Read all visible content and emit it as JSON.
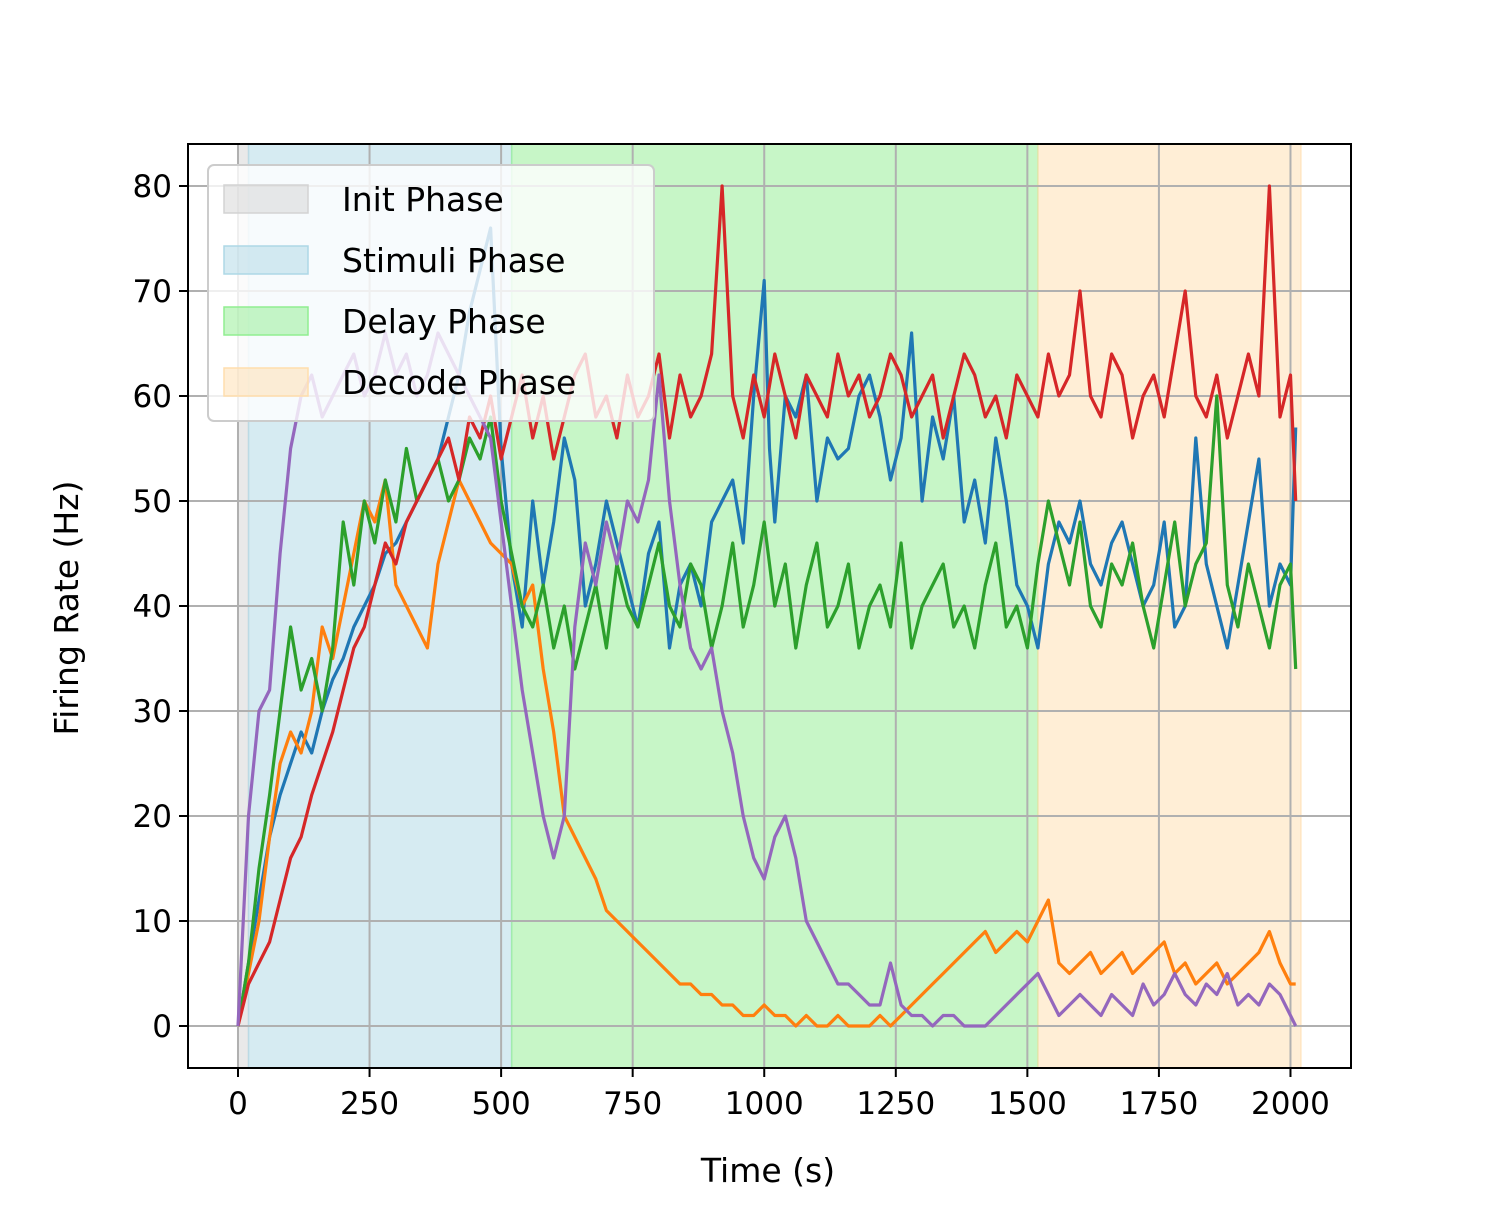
{
  "chart_data": {
    "type": "line",
    "title": "",
    "xlabel": "Time (s)",
    "ylabel": "Firing Rate (Hz)",
    "xlim": [
      -95,
      2115
    ],
    "ylim": [
      -4,
      84
    ],
    "xticks": [
      0,
      250,
      500,
      750,
      1000,
      1250,
      1500,
      1750,
      2000
    ],
    "yticks": [
      0,
      10,
      20,
      30,
      40,
      50,
      60,
      70,
      80
    ],
    "grid": true,
    "legend_position": "upper-left",
    "phases": [
      {
        "name": "Init Phase",
        "start": 0,
        "end": 20,
        "color": "#d3d3d3"
      },
      {
        "name": "Stimuli Phase",
        "start": 20,
        "end": 520,
        "color": "#add8e6"
      },
      {
        "name": "Delay Phase",
        "start": 520,
        "end": 1520,
        "color": "#90ee90"
      },
      {
        "name": "Decode Phase",
        "start": 1520,
        "end": 2020,
        "color": "#ffdead"
      }
    ],
    "series": [
      {
        "color": "#1f77b4",
        "x": [
          0,
          20,
          40,
          60,
          80,
          100,
          120,
          140,
          160,
          180,
          200,
          220,
          240,
          260,
          280,
          300,
          320,
          340,
          360,
          380,
          400,
          420,
          440,
          460,
          480,
          500,
          520,
          540,
          560,
          580,
          600,
          620,
          640,
          660,
          680,
          700,
          720,
          740,
          760,
          780,
          800,
          820,
          840,
          860,
          880,
          900,
          920,
          940,
          960,
          980,
          1000,
          1010,
          1020,
          1040,
          1060,
          1080,
          1100,
          1120,
          1140,
          1160,
          1180,
          1200,
          1220,
          1240,
          1260,
          1280,
          1300,
          1320,
          1340,
          1360,
          1380,
          1400,
          1420,
          1440,
          1460,
          1480,
          1500,
          1520,
          1540,
          1560,
          1580,
          1600,
          1620,
          1640,
          1660,
          1680,
          1700,
          1720,
          1740,
          1760,
          1780,
          1800,
          1820,
          1840,
          1860,
          1880,
          1900,
          1920,
          1940,
          1960,
          1980,
          2000,
          2010
        ],
        "y": [
          0,
          6,
          12,
          18,
          22,
          25,
          28,
          26,
          30,
          33,
          35,
          38,
          40,
          42,
          45,
          46,
          48,
          50,
          52,
          54,
          58,
          62,
          68,
          72,
          76,
          55,
          44,
          38,
          50,
          42,
          48,
          56,
          52,
          40,
          44,
          50,
          46,
          42,
          38,
          45,
          48,
          36,
          42,
          44,
          40,
          48,
          50,
          52,
          46,
          60,
          71,
          55,
          48,
          60,
          58,
          62,
          50,
          56,
          54,
          55,
          60,
          62,
          58,
          52,
          56,
          66,
          50,
          58,
          54,
          60,
          48,
          52,
          46,
          56,
          50,
          42,
          40,
          36,
          44,
          48,
          46,
          50,
          44,
          42,
          46,
          48,
          44,
          40,
          42,
          48,
          38,
          40,
          56,
          44,
          40,
          36,
          42,
          48,
          54,
          40,
          44,
          42,
          57
        ]
      },
      {
        "color": "#ff7f0e",
        "x": [
          0,
          20,
          40,
          60,
          80,
          100,
          120,
          140,
          160,
          180,
          200,
          220,
          240,
          260,
          280,
          300,
          320,
          340,
          360,
          380,
          400,
          420,
          440,
          460,
          480,
          500,
          520,
          540,
          560,
          580,
          600,
          620,
          640,
          660,
          680,
          700,
          720,
          740,
          760,
          780,
          800,
          820,
          840,
          860,
          880,
          900,
          920,
          940,
          960,
          980,
          1000,
          1020,
          1040,
          1060,
          1080,
          1100,
          1120,
          1140,
          1160,
          1180,
          1200,
          1220,
          1240,
          1260,
          1280,
          1300,
          1320,
          1340,
          1360,
          1380,
          1400,
          1420,
          1440,
          1460,
          1480,
          1500,
          1520,
          1540,
          1560,
          1580,
          1600,
          1620,
          1640,
          1660,
          1680,
          1700,
          1720,
          1740,
          1760,
          1780,
          1800,
          1820,
          1840,
          1860,
          1880,
          1900,
          1920,
          1940,
          1960,
          1980,
          2000,
          2010
        ],
        "y": [
          0,
          5,
          10,
          18,
          25,
          28,
          26,
          30,
          38,
          35,
          40,
          45,
          50,
          48,
          52,
          42,
          40,
          38,
          36,
          44,
          48,
          52,
          50,
          48,
          46,
          45,
          44,
          40,
          42,
          34,
          28,
          20,
          18,
          16,
          14,
          11,
          10,
          9,
          8,
          7,
          6,
          5,
          4,
          4,
          3,
          3,
          2,
          2,
          1,
          1,
          2,
          1,
          1,
          0,
          1,
          0,
          0,
          1,
          0,
          0,
          0,
          1,
          0,
          1,
          2,
          3,
          4,
          5,
          6,
          7,
          8,
          9,
          7,
          8,
          9,
          8,
          10,
          12,
          6,
          5,
          6,
          7,
          5,
          6,
          7,
          5,
          6,
          7,
          8,
          5,
          6,
          4,
          5,
          6,
          4,
          5,
          6,
          7,
          9,
          6,
          4,
          4
        ]
      },
      {
        "color": "#2ca02c",
        "x": [
          0,
          20,
          40,
          60,
          80,
          100,
          120,
          140,
          160,
          180,
          200,
          220,
          240,
          260,
          280,
          300,
          320,
          340,
          360,
          380,
          400,
          420,
          440,
          460,
          480,
          500,
          520,
          540,
          560,
          580,
          600,
          620,
          640,
          660,
          680,
          700,
          720,
          740,
          760,
          780,
          800,
          820,
          840,
          860,
          880,
          900,
          920,
          940,
          960,
          980,
          1000,
          1020,
          1040,
          1060,
          1080,
          1100,
          1120,
          1140,
          1160,
          1180,
          1200,
          1220,
          1240,
          1260,
          1280,
          1300,
          1320,
          1340,
          1360,
          1380,
          1400,
          1420,
          1440,
          1460,
          1480,
          1500,
          1520,
          1540,
          1560,
          1580,
          1600,
          1620,
          1640,
          1660,
          1680,
          1700,
          1720,
          1740,
          1760,
          1780,
          1800,
          1820,
          1840,
          1860,
          1880,
          1900,
          1920,
          1940,
          1960,
          1980,
          2000,
          2010
        ],
        "y": [
          0,
          6,
          15,
          22,
          30,
          38,
          32,
          35,
          30,
          36,
          48,
          42,
          50,
          46,
          52,
          48,
          55,
          50,
          52,
          54,
          50,
          52,
          56,
          54,
          58,
          50,
          45,
          40,
          38,
          42,
          36,
          40,
          34,
          38,
          42,
          36,
          44,
          40,
          38,
          42,
          46,
          40,
          38,
          44,
          42,
          36,
          40,
          46,
          38,
          42,
          48,
          40,
          44,
          36,
          42,
          46,
          38,
          40,
          44,
          36,
          40,
          42,
          38,
          46,
          36,
          40,
          42,
          44,
          38,
          40,
          36,
          42,
          46,
          38,
          40,
          36,
          44,
          50,
          46,
          42,
          48,
          40,
          38,
          44,
          42,
          46,
          40,
          36,
          42,
          48,
          40,
          44,
          46,
          60,
          42,
          38,
          44,
          40,
          36,
          42,
          44,
          34
        ]
      },
      {
        "color": "#d62728",
        "x": [
          0,
          20,
          40,
          60,
          80,
          100,
          120,
          140,
          160,
          180,
          200,
          220,
          240,
          260,
          280,
          300,
          320,
          340,
          360,
          380,
          400,
          420,
          440,
          460,
          480,
          500,
          520,
          540,
          560,
          580,
          600,
          620,
          640,
          660,
          680,
          700,
          720,
          740,
          760,
          780,
          800,
          820,
          840,
          860,
          880,
          900,
          920,
          940,
          960,
          980,
          1000,
          1020,
          1040,
          1060,
          1080,
          1100,
          1120,
          1140,
          1160,
          1180,
          1200,
          1220,
          1240,
          1260,
          1280,
          1300,
          1320,
          1340,
          1360,
          1380,
          1400,
          1420,
          1440,
          1460,
          1480,
          1500,
          1520,
          1540,
          1560,
          1580,
          1600,
          1620,
          1640,
          1660,
          1680,
          1700,
          1720,
          1740,
          1760,
          1780,
          1800,
          1820,
          1840,
          1860,
          1880,
          1900,
          1920,
          1940,
          1960,
          1980,
          2000,
          2010
        ],
        "y": [
          0,
          4,
          6,
          8,
          12,
          16,
          18,
          22,
          25,
          28,
          32,
          36,
          38,
          42,
          46,
          44,
          48,
          50,
          52,
          54,
          56,
          52,
          58,
          56,
          60,
          54,
          58,
          62,
          56,
          60,
          54,
          58,
          62,
          64,
          58,
          60,
          56,
          62,
          58,
          60,
          64,
          56,
          62,
          58,
          60,
          64,
          80,
          60,
          56,
          62,
          58,
          64,
          60,
          56,
          62,
          60,
          58,
          64,
          60,
          62,
          58,
          60,
          64,
          62,
          58,
          60,
          62,
          56,
          60,
          64,
          62,
          58,
          60,
          56,
          62,
          60,
          58,
          64,
          60,
          62,
          70,
          60,
          58,
          64,
          62,
          56,
          60,
          62,
          58,
          64,
          70,
          60,
          58,
          62,
          56,
          60,
          64,
          60,
          80,
          58,
          62,
          50
        ]
      },
      {
        "color": "#9467bd",
        "x": [
          0,
          20,
          40,
          60,
          80,
          100,
          120,
          140,
          160,
          180,
          200,
          220,
          240,
          260,
          280,
          300,
          320,
          340,
          360,
          380,
          400,
          420,
          440,
          460,
          480,
          500,
          520,
          540,
          560,
          580,
          600,
          620,
          640,
          660,
          680,
          700,
          720,
          740,
          760,
          780,
          800,
          820,
          840,
          860,
          880,
          900,
          920,
          940,
          960,
          980,
          1000,
          1020,
          1040,
          1060,
          1080,
          1100,
          1120,
          1140,
          1160,
          1180,
          1200,
          1220,
          1240,
          1260,
          1280,
          1300,
          1320,
          1340,
          1360,
          1380,
          1400,
          1420,
          1440,
          1460,
          1480,
          1500,
          1520,
          1540,
          1560,
          1580,
          1600,
          1620,
          1640,
          1660,
          1680,
          1700,
          1720,
          1740,
          1760,
          1780,
          1800,
          1820,
          1840,
          1860,
          1880,
          1900,
          1920,
          1940,
          1960,
          1980,
          2000,
          2010
        ],
        "y": [
          0,
          20,
          30,
          32,
          45,
          55,
          60,
          62,
          58,
          60,
          62,
          64,
          60,
          62,
          66,
          62,
          64,
          60,
          62,
          66,
          64,
          62,
          60,
          58,
          56,
          48,
          40,
          32,
          26,
          20,
          16,
          20,
          38,
          46,
          42,
          48,
          44,
          50,
          48,
          52,
          62,
          50,
          42,
          36,
          34,
          36,
          30,
          26,
          20,
          16,
          14,
          18,
          20,
          16,
          10,
          8,
          6,
          4,
          4,
          3,
          2,
          2,
          6,
          2,
          1,
          1,
          0,
          1,
          1,
          0,
          0,
          0,
          1,
          2,
          3,
          4,
          5,
          3,
          1,
          2,
          3,
          2,
          1,
          3,
          2,
          1,
          4,
          2,
          3,
          5,
          3,
          2,
          4,
          3,
          5,
          2,
          3,
          2,
          4,
          3,
          1,
          0
        ]
      }
    ]
  }
}
